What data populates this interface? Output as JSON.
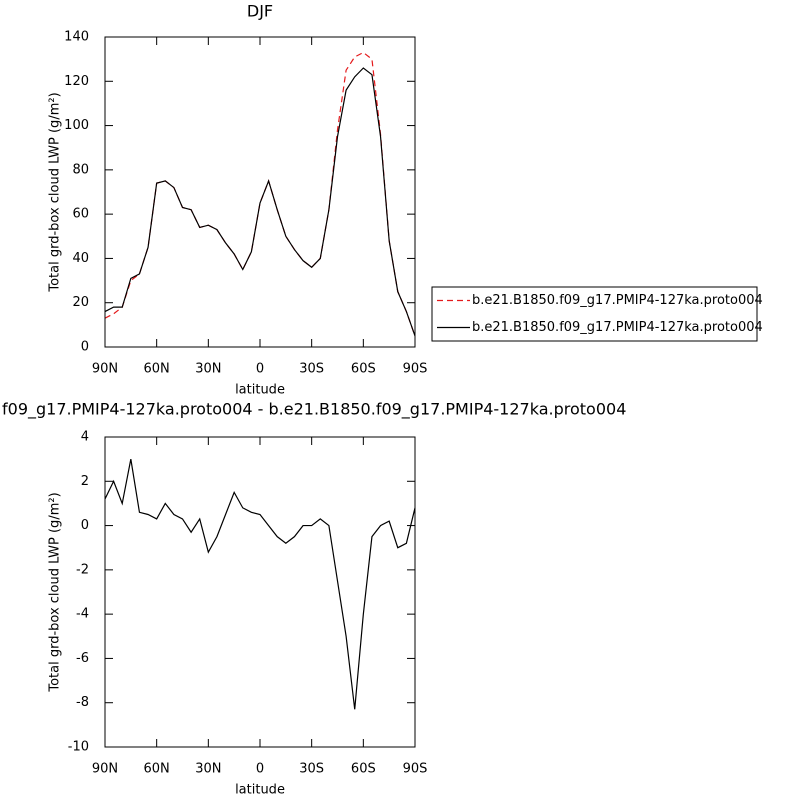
{
  "chart_data": [
    {
      "type": "line",
      "title": "DJF",
      "xlabel": "latitude",
      "ylabel": "Total grd-box cloud LWP (g/m²)",
      "x": [
        90,
        85,
        80,
        75,
        70,
        65,
        60,
        55,
        50,
        45,
        40,
        35,
        30,
        25,
        20,
        15,
        10,
        5,
        0,
        -5,
        -10,
        -15,
        -20,
        -25,
        -30,
        -35,
        -40,
        -45,
        -50,
        -55,
        -60,
        -65,
        -70,
        -75,
        -80,
        -85,
        -90
      ],
      "series": [
        {
          "name": "b.e21.B1850.f09_g17.PMIP4-127ka.proto004",
          "color": "#e41a1c",
          "dash": true,
          "values": [
            13,
            15,
            18,
            30,
            33,
            45,
            74,
            75,
            72,
            63,
            62,
            54,
            55,
            53,
            47,
            42,
            35,
            43,
            65,
            75,
            62,
            50,
            44,
            39,
            36,
            40,
            62,
            98,
            125,
            131,
            133,
            130,
            96,
            48,
            25,
            16,
            5
          ]
        },
        {
          "name": "b.e21.B1850.f09_g17.PMIP4-127ka.proto004",
          "color": "#000000",
          "dash": false,
          "values": [
            16,
            18,
            18,
            31,
            33,
            45,
            74,
            75,
            72,
            63,
            62,
            54,
            55,
            53,
            47,
            42,
            35,
            43,
            65,
            75,
            62,
            50,
            44,
            39,
            36,
            40,
            62,
            95,
            116,
            122,
            126,
            123,
            95,
            48,
            25,
            16,
            5
          ]
        }
      ],
      "xlim": [
        90,
        -90
      ],
      "xticks": [
        {
          "value": 90,
          "label": "90N"
        },
        {
          "value": 60,
          "label": "60N"
        },
        {
          "value": 30,
          "label": "30N"
        },
        0,
        {
          "value": -30,
          "label": "30S"
        },
        {
          "value": -60,
          "label": "60S"
        },
        {
          "value": -90,
          "label": "90S"
        }
      ],
      "ylim": [
        0,
        140
      ],
      "yticks": [
        0,
        20,
        40,
        60,
        80,
        100,
        120,
        140
      ],
      "legend": "right"
    },
    {
      "type": "line",
      "title": "f09_g17.PMIP4-127ka.proto004 - b.e21.B1850.f09_g17.PMIP4-127ka.proto004",
      "xlabel": "latitude",
      "ylabel": "Total grd-box cloud LWP (g/m²)",
      "x": [
        90,
        85,
        80,
        75,
        70,
        65,
        60,
        55,
        50,
        45,
        40,
        35,
        30,
        25,
        20,
        15,
        10,
        5,
        0,
        -5,
        -10,
        -15,
        -20,
        -25,
        -30,
        -35,
        -40,
        -45,
        -50,
        -55,
        -60,
        -65,
        -70,
        -75,
        -80,
        -85,
        -90
      ],
      "series": [
        {
          "color": "#000000",
          "dash": false,
          "values": [
            1.2,
            2.0,
            1.0,
            3.0,
            0.6,
            0.5,
            0.3,
            1.0,
            0.5,
            0.3,
            -0.3,
            0.3,
            -1.2,
            -0.5,
            0.5,
            1.5,
            0.8,
            0.6,
            0.5,
            0,
            -0.5,
            -0.8,
            -0.5,
            0,
            0,
            0.3,
            0,
            -2.5,
            -5,
            -8.3,
            -4,
            -0.5,
            0,
            0.2,
            -1.0,
            -0.8,
            0.8
          ]
        }
      ],
      "xlim": [
        90,
        -90
      ],
      "xticks": [
        {
          "value": 90,
          "label": "90N"
        },
        {
          "value": 60,
          "label": "60N"
        },
        {
          "value": 30,
          "label": "30N"
        },
        0,
        {
          "value": -30,
          "label": "30S"
        },
        {
          "value": -60,
          "label": "60S"
        },
        {
          "value": -90,
          "label": "90S"
        }
      ],
      "ylim": [
        -10,
        4
      ],
      "yticks": [
        -10,
        -8,
        -6,
        -4,
        -2,
        0,
        2,
        4
      ]
    }
  ]
}
